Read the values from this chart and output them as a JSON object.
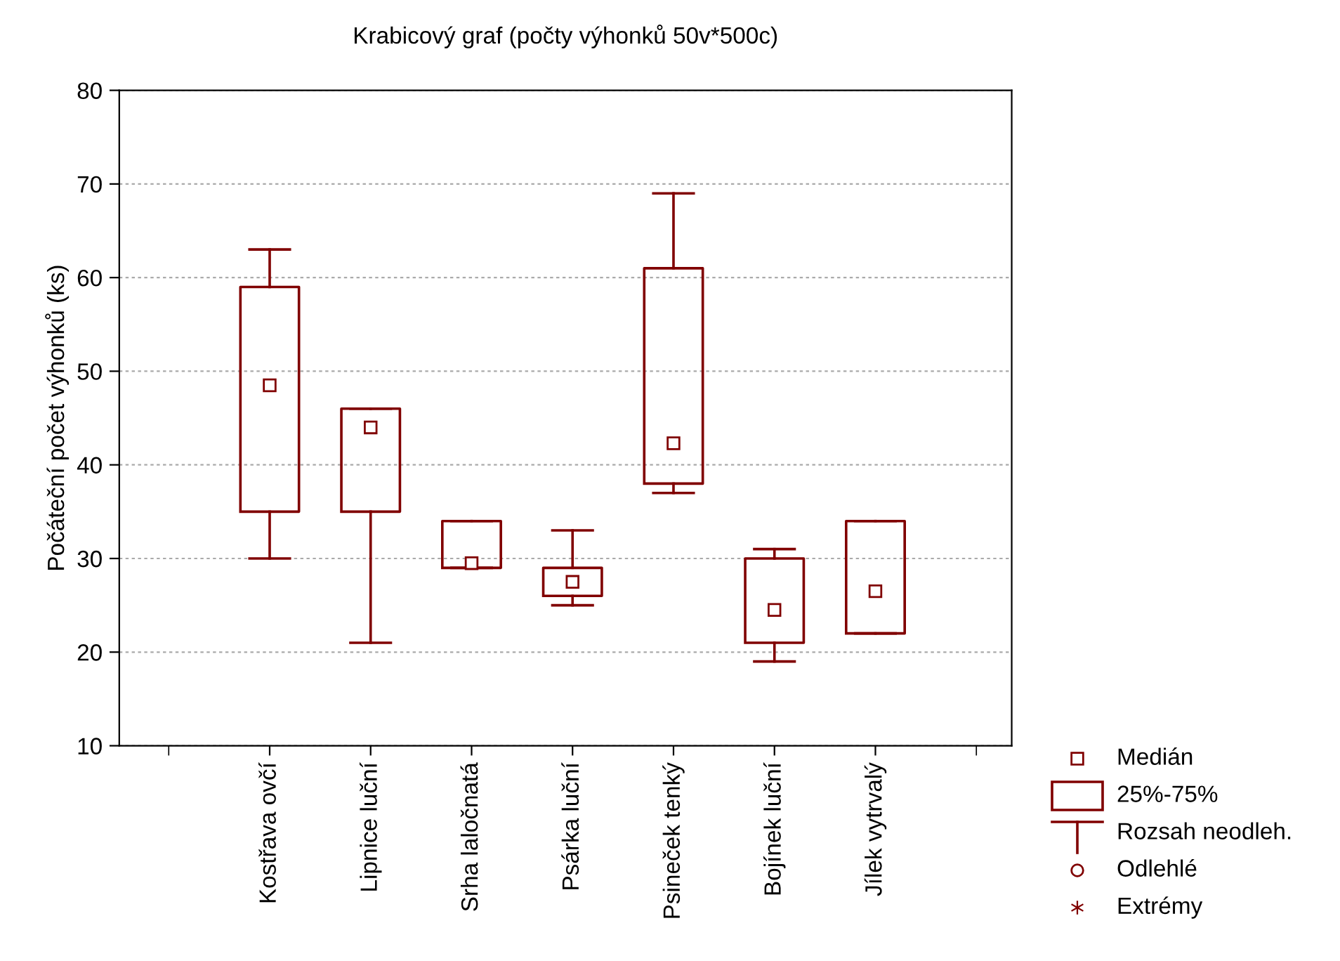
{
  "chart_data": {
    "type": "box",
    "title": "Krabicový graf (počty výhonků 50v*500c)",
    "ylabel": "Počáteční počet výhonků (ks)",
    "categories": [
      "Kostřava ovčí",
      "Lipnice luční",
      "Srha laločnatá",
      "Psárka luční",
      "Psineček tenký",
      "Bojínek luční",
      "Jílek vytrvalý"
    ],
    "color": "#800000",
    "boxes": [
      {
        "low": 30,
        "q1": 35,
        "median": 48.5,
        "q3": 59,
        "high": 63
      },
      {
        "low": 21,
        "q1": 35,
        "median": 44,
        "q3": 46,
        "high": 46
      },
      {
        "low": 29,
        "q1": 29,
        "median": 29.5,
        "q3": 34,
        "high": 34
      },
      {
        "low": 25,
        "q1": 26,
        "median": 27.5,
        "q3": 29,
        "high": 33
      },
      {
        "low": 37,
        "q1": 38,
        "median": 42.3,
        "q3": 61,
        "high": 69
      },
      {
        "low": 19,
        "q1": 21,
        "median": 24.5,
        "q3": 30,
        "high": 31
      },
      {
        "low": 22,
        "q1": 22,
        "median": 26.5,
        "q3": 34,
        "high": 34
      }
    ],
    "ylim": [
      10,
      80
    ],
    "yticks": [
      10,
      20,
      30,
      40,
      50,
      60,
      70,
      80
    ],
    "grid": "y",
    "annotations": [
      "Medián",
      "25%-75%",
      "Rozsah neodleh.",
      "Odlehlé",
      "Extrémy"
    ]
  }
}
